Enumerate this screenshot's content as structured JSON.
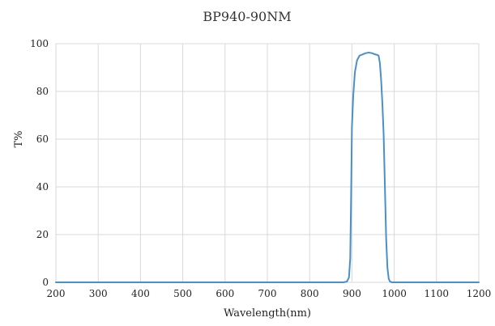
{
  "chart_data": {
    "type": "line",
    "title": "BP940-90NM",
    "xlabel": "Wavelength(nm)",
    "ylabel": "T%",
    "xlim": [
      200,
      1200
    ],
    "ylim": [
      0,
      100
    ],
    "x_ticks": [
      200,
      300,
      400,
      500,
      600,
      700,
      800,
      900,
      1000,
      1100,
      1200
    ],
    "y_ticks": [
      0,
      20,
      40,
      60,
      80,
      100
    ],
    "grid": true,
    "legend": "none",
    "series": [
      {
        "color": "#4a90c8",
        "points": [
          [
            200,
            0
          ],
          [
            880,
            0
          ],
          [
            888,
            0.3
          ],
          [
            893,
            2
          ],
          [
            896,
            10
          ],
          [
            898,
            35
          ],
          [
            900,
            65
          ],
          [
            903,
            78
          ],
          [
            907,
            88
          ],
          [
            912,
            93
          ],
          [
            918,
            95
          ],
          [
            925,
            95.5
          ],
          [
            932,
            96
          ],
          [
            940,
            96.3
          ],
          [
            948,
            96
          ],
          [
            955,
            95.5
          ],
          [
            960,
            95.3
          ],
          [
            963,
            95
          ],
          [
            966,
            92
          ],
          [
            969,
            85
          ],
          [
            972,
            75
          ],
          [
            975,
            62
          ],
          [
            978,
            40
          ],
          [
            981,
            18
          ],
          [
            984,
            6
          ],
          [
            987,
            1.5
          ],
          [
            990,
            0.3
          ],
          [
            995,
            0
          ],
          [
            1200,
            0
          ]
        ]
      }
    ]
  }
}
